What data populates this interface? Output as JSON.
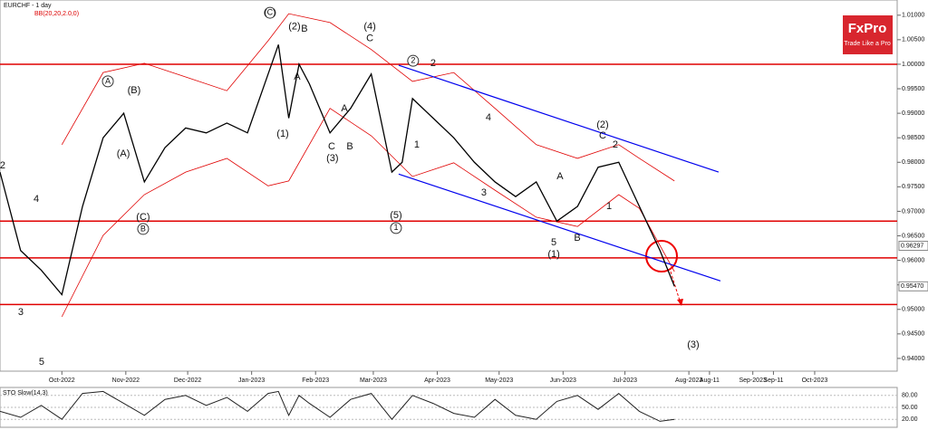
{
  "header": {
    "title": "EURCHF - 1 day",
    "indicator": "BB(20,20,2.0,0)",
    "logo": "FxPro",
    "tagline": "Trade Like a Pro"
  },
  "chart_data": {
    "type": "line",
    "x": [
      -30,
      -20,
      -10,
      0,
      10,
      20,
      30,
      40,
      50,
      60,
      70,
      80,
      90,
      100,
      105,
      110,
      115,
      120,
      130,
      140,
      150,
      160,
      165,
      170,
      180,
      190,
      200,
      210,
      220,
      230,
      240,
      250,
      260,
      270,
      280,
      290,
      297
    ],
    "series": [
      {
        "color": "#000000",
        "values": [
          0.978,
          0.962,
          0.958,
          0.953,
          0.971,
          0.985,
          0.99,
          0.976,
          0.983,
          0.987,
          0.986,
          0.988,
          0.986,
          0.998,
          1.004,
          0.989,
          1.0,
          0.996,
          0.986,
          0.991,
          0.998,
          0.978,
          0.98,
          0.993,
          0.989,
          0.985,
          0.98,
          0.976,
          0.973,
          0.976,
          0.968,
          0.971,
          0.979,
          0.98,
          0.971,
          0.962,
          0.9547
        ]
      }
    ],
    "bands": {
      "color": "#e00000",
      "x": [
        0,
        20,
        40,
        60,
        80,
        100,
        110,
        130,
        150,
        170,
        190,
        210,
        230,
        250,
        270,
        280,
        297
      ],
      "upper": [
        0.9836,
        0.9983,
        1.0002,
        0.9974,
        0.9946,
        1.0048,
        1.0103,
        1.0085,
        1.003,
        0.9965,
        0.9983,
        0.991,
        0.9836,
        0.9808,
        0.9836,
        0.9808,
        0.9762
      ],
      "lower": [
        0.9485,
        0.9651,
        0.9734,
        0.978,
        0.9808,
        0.9752,
        0.9762,
        0.991,
        0.9854,
        0.9771,
        0.9799,
        0.9743,
        0.9688,
        0.9669,
        0.9734,
        0.9706,
        0.9577
      ]
    },
    "levels": [
      1.0,
      0.968,
      0.9605,
      0.951
    ],
    "level_color": "#e00000",
    "channel": {
      "color": "#0000ee",
      "lines": [
        {
          "x": [
            163.3,
            318.4
          ],
          "y": [
            0.9998,
            0.978
          ]
        },
        {
          "x": [
            163.3,
            319.3
          ],
          "y": [
            0.9776,
            0.9558
          ]
        }
      ]
    },
    "price_tags": [
      {
        "value": 0.96297,
        "label": "0.96297"
      },
      {
        "value": 0.9547,
        "label": "0.95470"
      }
    ],
    "xlim": [
      -30,
      405
    ],
    "ylim": [
      0.9374,
      1.0131
    ],
    "grid": false,
    "yticks": [
      {
        "value": 1.01,
        "label": "1.01000"
      },
      {
        "value": 1.005,
        "label": "1.00500"
      },
      {
        "value": 1.0,
        "label": "1.00000"
      },
      {
        "value": 0.995,
        "label": "0.99500"
      },
      {
        "value": 0.99,
        "label": "0.99000"
      },
      {
        "value": 0.985,
        "label": "0.98500"
      },
      {
        "value": 0.98,
        "label": "0.98000"
      },
      {
        "value": 0.975,
        "label": "0.97500"
      },
      {
        "value": 0.97,
        "label": "0.97000"
      },
      {
        "value": 0.965,
        "label": "0.96500"
      },
      {
        "value": 0.96,
        "label": "0.96000"
      },
      {
        "value": 0.955,
        "label": "0.95500"
      },
      {
        "value": 0.95,
        "label": "0.95000"
      },
      {
        "value": 0.945,
        "label": "0.94500"
      },
      {
        "value": 0.94,
        "label": "0.94000"
      }
    ],
    "xticks": [
      {
        "value": 0,
        "label": "Oct-2022"
      },
      {
        "value": 31,
        "label": "Nov-2022"
      },
      {
        "value": 61,
        "label": "Dec-2022"
      },
      {
        "value": 92,
        "label": "Jan-2023"
      },
      {
        "value": 123,
        "label": "Feb-2023"
      },
      {
        "value": 151,
        "label": "Mar-2023"
      },
      {
        "value": 182,
        "label": "Apr-2023"
      },
      {
        "value": 212,
        "label": "May-2023"
      },
      {
        "value": 243,
        "label": "Jun-2023"
      },
      {
        "value": 273,
        "label": "Jul-2023"
      },
      {
        "value": 304,
        "label": "Aug-2023"
      },
      {
        "value": 314,
        "label": "Aug-11"
      },
      {
        "value": 335,
        "label": "Sep-2023"
      },
      {
        "value": 345,
        "label": "Sep-11"
      },
      {
        "value": 365,
        "label": "Oct-2023"
      }
    ],
    "annotations": [
      {
        "text": "(C)",
        "x": 100.9,
        "y": 1.0105,
        "circled": true
      },
      {
        "text": "(2)",
        "x": 112.8,
        "y": 1.0076
      },
      {
        "text": "B",
        "x": 117.6,
        "y": 1.0072
      },
      {
        "text": "(4)",
        "x": 149.3,
        "y": 1.0076
      },
      {
        "text": "C",
        "x": 149.3,
        "y": 1.0052
      },
      {
        "text": "A",
        "x": 22.3,
        "y": 0.9965,
        "circled": true
      },
      {
        "text": "(B)",
        "x": 35,
        "y": 0.9946
      },
      {
        "text": "(A)",
        "x": 29.8,
        "y": 0.9817
      },
      {
        "text": "(C)",
        "x": 39.4,
        "y": 0.9688
      },
      {
        "text": "B",
        "x": 39.4,
        "y": 0.9664,
        "circled": true
      },
      {
        "text": "A",
        "x": 114.1,
        "y": 0.9974
      },
      {
        "text": "A",
        "x": 137,
        "y": 0.9909
      },
      {
        "text": "(1)",
        "x": 107.1,
        "y": 0.9858
      },
      {
        "text": "C",
        "x": 130.8,
        "y": 0.9832
      },
      {
        "text": "B",
        "x": 139.6,
        "y": 0.9832
      },
      {
        "text": "(3)",
        "x": 131.2,
        "y": 0.9808
      },
      {
        "text": "(5)",
        "x": 162,
        "y": 0.9691
      },
      {
        "text": "1",
        "x": 162,
        "y": 0.9666,
        "circled": true
      },
      {
        "text": "2",
        "x": 170.3,
        "y": 1.0007,
        "circled": true
      },
      {
        "text": "2",
        "x": 180,
        "y": 1.0002
      },
      {
        "text": "1",
        "x": 172.1,
        "y": 0.9835
      },
      {
        "text": "4",
        "x": 206.8,
        "y": 0.9891
      },
      {
        "text": "3",
        "x": 204.6,
        "y": 0.9738
      },
      {
        "text": "5",
        "x": 238.5,
        "y": 0.9636
      },
      {
        "text": "(1)",
        "x": 238.5,
        "y": 0.9612
      },
      {
        "text": "A",
        "x": 241.5,
        "y": 0.9771
      },
      {
        "text": "B",
        "x": 249.9,
        "y": 0.9645
      },
      {
        "text": "(2)",
        "x": 262.2,
        "y": 0.9876
      },
      {
        "text": "C",
        "x": 262.2,
        "y": 0.9854
      },
      {
        "text": "2",
        "x": 268.3,
        "y": 0.9835
      },
      {
        "text": "1",
        "x": 265.3,
        "y": 0.971
      },
      {
        "text": "(3)",
        "x": 306.1,
        "y": 0.9427
      },
      {
        "text": "4",
        "x": -12.4,
        "y": 0.9725
      },
      {
        "text": "3",
        "x": -19.9,
        "y": 0.9494
      },
      {
        "text": "5",
        "x": -9.8,
        "y": 0.9392
      },
      {
        "text": "2",
        "x": -28.7,
        "y": 0.9793
      }
    ],
    "stochastic": {
      "label": "STO Slow(14,3)",
      "color": "#222222",
      "values": [
        40,
        25,
        55,
        20,
        85,
        90,
        60,
        30,
        70,
        80,
        55,
        75,
        40,
        85,
        90,
        30,
        80,
        60,
        25,
        70,
        85,
        20,
        50,
        80,
        60,
        35,
        25,
        70,
        30,
        20,
        65,
        80,
        45,
        85,
        40,
        15,
        20
      ],
      "ylim": [
        0,
        100
      ],
      "yticks": [
        {
          "value": 80,
          "label": "80.00"
        },
        {
          "value": 50,
          "label": "50.00"
        },
        {
          "value": 20,
          "label": "20.00"
        }
      ]
    }
  }
}
